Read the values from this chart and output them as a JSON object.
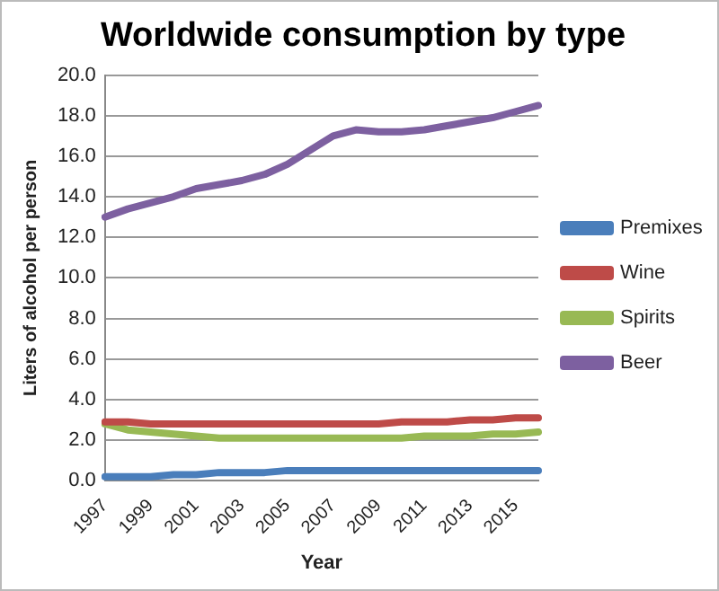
{
  "chart_data": {
    "type": "line",
    "title": "Worldwide consumption by type",
    "xlabel": "Year",
    "ylabel": "Liters of alcohol per person",
    "categories": [
      "1997",
      null,
      "1999",
      null,
      "2001",
      null,
      "2003",
      null,
      "2005",
      null,
      "2007",
      null,
      "2009",
      null,
      "2011",
      null,
      "2013",
      null,
      "2015",
      null
    ],
    "series": [
      {
        "name": "Premixes",
        "color": "#4a7ebb",
        "values": [
          0.2,
          0.2,
          0.2,
          0.3,
          0.3,
          0.4,
          0.4,
          0.4,
          0.5,
          0.5,
          0.5,
          0.5,
          0.5,
          0.5,
          0.5,
          0.5,
          0.5,
          0.5,
          0.5,
          0.5
        ]
      },
      {
        "name": "Wine",
        "color": "#be4b48",
        "values": [
          2.9,
          2.9,
          2.8,
          2.8,
          2.8,
          2.8,
          2.8,
          2.8,
          2.8,
          2.8,
          2.8,
          2.8,
          2.8,
          2.9,
          2.9,
          2.9,
          3.0,
          3.0,
          3.1,
          3.1
        ]
      },
      {
        "name": "Spirits",
        "color": "#98b954",
        "values": [
          2.8,
          2.5,
          2.4,
          2.3,
          2.2,
          2.1,
          2.1,
          2.1,
          2.1,
          2.1,
          2.1,
          2.1,
          2.1,
          2.1,
          2.2,
          2.2,
          2.2,
          2.3,
          2.3,
          2.4
        ]
      },
      {
        "name": "Beer",
        "color": "#7d60a0",
        "values": [
          13.0,
          13.4,
          13.7,
          14.0,
          14.4,
          14.6,
          14.8,
          15.1,
          15.6,
          16.3,
          17.0,
          17.3,
          17.2,
          17.2,
          17.3,
          17.5,
          17.7,
          17.9,
          18.2,
          18.5
        ]
      }
    ],
    "ylim": [
      0,
      20
    ],
    "yticks": [
      {
        "value": 0,
        "label": "0.0"
      },
      {
        "value": 2,
        "label": "2.0"
      },
      {
        "value": 4,
        "label": "4.0"
      },
      {
        "value": 6,
        "label": "6.0"
      },
      {
        "value": 8,
        "label": "8.0"
      },
      {
        "value": 10,
        "label": "10.0"
      },
      {
        "value": 12,
        "label": "12.0"
      },
      {
        "value": 14,
        "label": "14.0"
      },
      {
        "value": 16,
        "label": "16.0"
      },
      {
        "value": 18,
        "label": "18.0"
      },
      {
        "value": 20,
        "label": "20.0"
      }
    ],
    "grid": "y",
    "legend": "right",
    "marker": "none",
    "line_style": "solid"
  }
}
